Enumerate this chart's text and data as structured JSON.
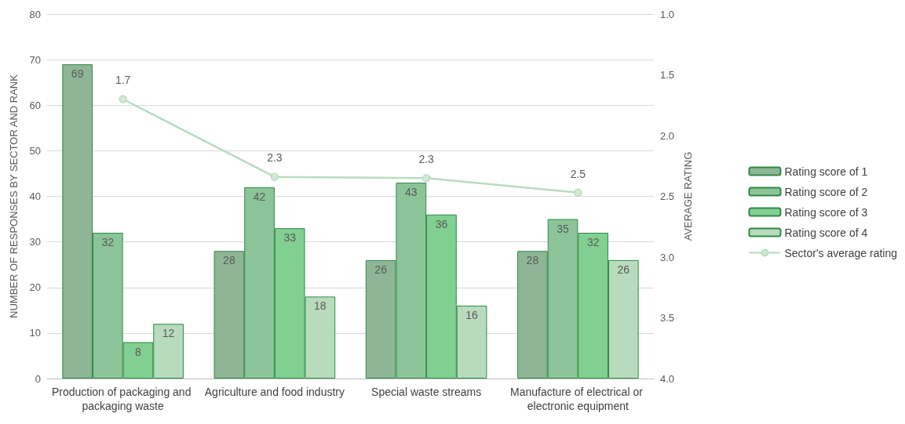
{
  "chart_data": {
    "type": "bar",
    "ylabel": "NUMBER OF RESPONSES BY SECTOR AND RANK",
    "y2label": "AVERAGE RATING",
    "categories": [
      "Production of packaging and packaging waste",
      "Agriculture and food industry",
      "Special waste streams",
      "Manufacture of electrical or electronic equipment"
    ],
    "series": [
      {
        "name": "Rating score of 1",
        "color": "#8fb597",
        "values": [
          69,
          28,
          26,
          28
        ]
      },
      {
        "name": "Rating score of 2",
        "color": "#8cc49a",
        "values": [
          32,
          42,
          43,
          35
        ]
      },
      {
        "name": "Rating score of 3",
        "color": "#82cf92",
        "values": [
          8,
          33,
          36,
          32
        ]
      },
      {
        "name": "Rating score of 4",
        "color": "#b8dbbd",
        "values": [
          12,
          18,
          16,
          26
        ]
      },
      {
        "name": "Sector's average rating",
        "type": "line",
        "axis": "y2",
        "color": "#b9dcc0",
        "marker": "circle",
        "values": [
          1.7,
          2.34,
          2.35,
          2.47
        ],
        "value_labels": [
          "1.7",
          "2.3",
          "2.3",
          "2.5"
        ]
      }
    ],
    "data_labels": true,
    "ylim": [
      0,
      80
    ],
    "yticks": [
      0,
      10,
      20,
      30,
      40,
      50,
      60,
      70,
      80
    ],
    "y2lim": [
      4,
      1
    ],
    "y2ticks": [
      {
        "value": 1,
        "label": "1.0"
      },
      {
        "value": 1.5,
        "label": "1.5"
      },
      {
        "value": 2,
        "label": "2.0"
      },
      {
        "value": 2.5,
        "label": "2.5"
      },
      {
        "value": 3,
        "label": "3.0"
      },
      {
        "value": 3.5,
        "label": "3.5"
      },
      {
        "value": 4,
        "label": "4.0"
      }
    ],
    "grid": "y",
    "legend": "right"
  }
}
